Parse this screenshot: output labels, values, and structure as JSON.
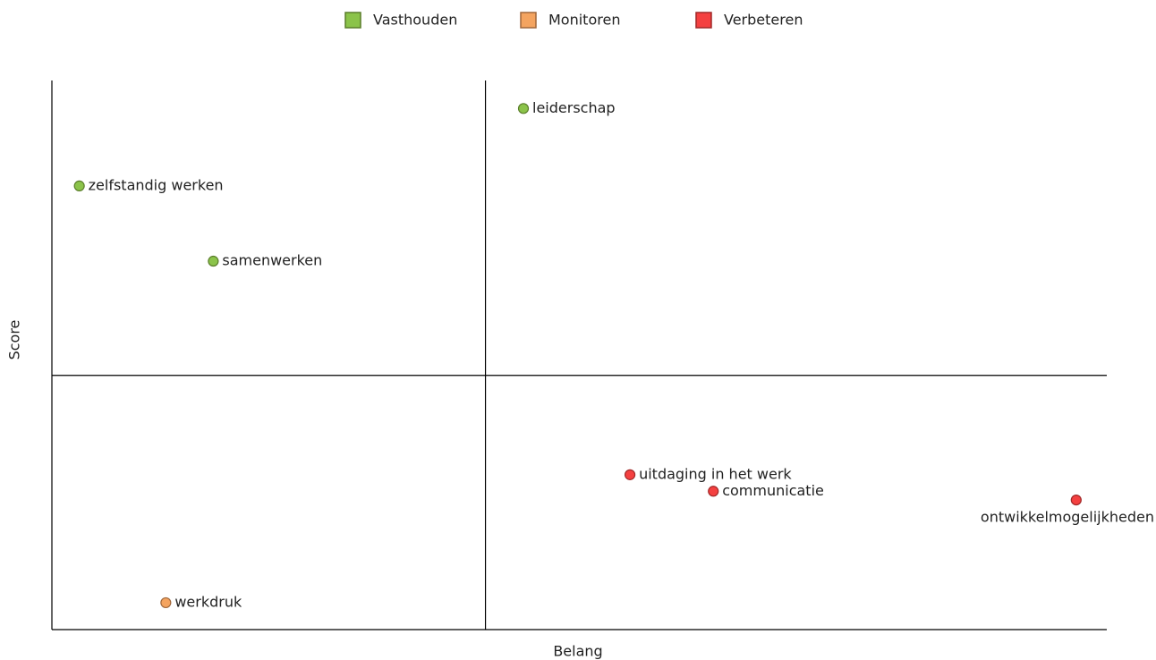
{
  "chart_data": {
    "type": "scatter",
    "x_label": "Belang",
    "y_label": "Score",
    "xlim": [
      0,
      100
    ],
    "ylim": [
      0,
      100
    ],
    "quadrant_x": 41.1,
    "quadrant_y": 46.3,
    "series": [
      {
        "name": "Vasthouden",
        "color": "#8bc34a",
        "border": "#5a7d2a",
        "labels": [
          "leiderschap",
          "zelfstandig werken",
          "samenwerken"
        ],
        "x": [
          44.7,
          2.6,
          15.3
        ],
        "values": [
          94.9,
          80.8,
          67.1
        ]
      },
      {
        "name": "Monitoren",
        "color": "#f4a460",
        "border": "#a0673a",
        "labels": [
          "werkdruk"
        ],
        "x": [
          10.8
        ],
        "values": [
          4.9
        ]
      },
      {
        "name": "Verbeteren",
        "color": "#f44040",
        "border": "#a02828",
        "labels": [
          "uitdaging in het werk",
          "communicatie",
          "ontwikkelmogelijkheden"
        ],
        "x": [
          54.8,
          62.7,
          97.1
        ],
        "values": [
          28.2,
          25.2,
          23.6
        ]
      }
    ]
  }
}
